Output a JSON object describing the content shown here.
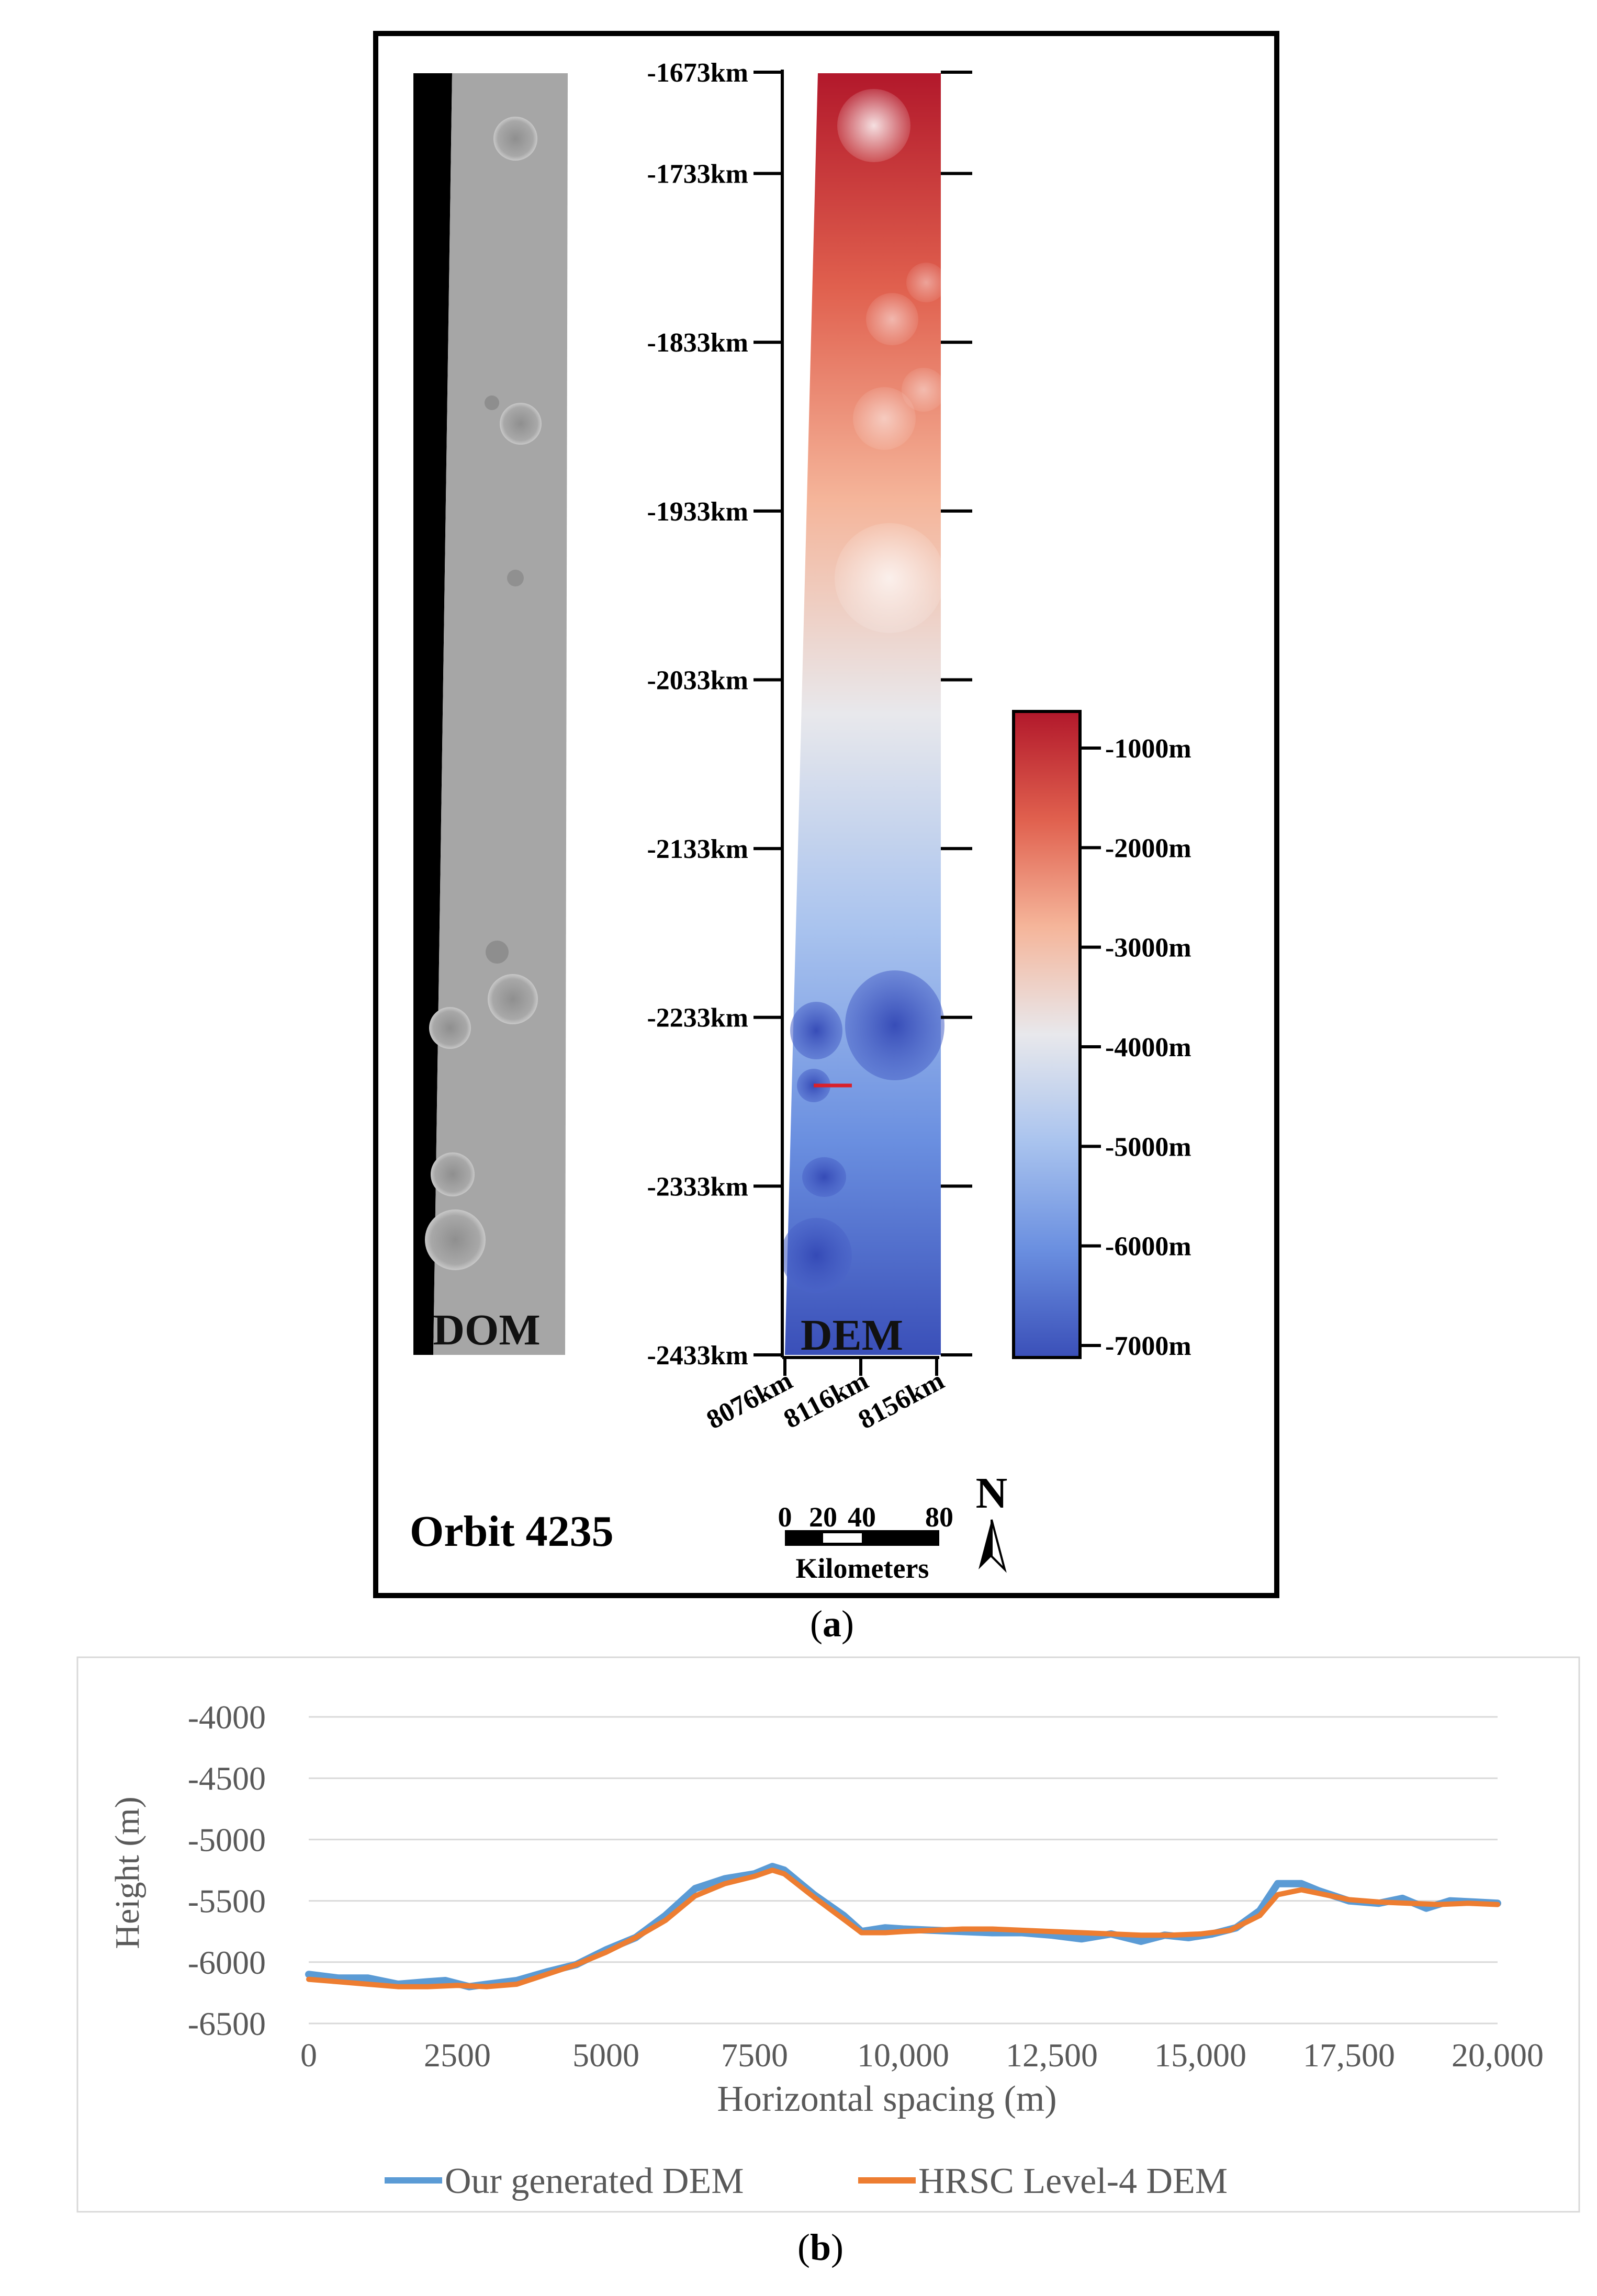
{
  "panel_a": {
    "caption": "a",
    "dom_label": "DOM",
    "dem_label": "DEM",
    "orbit_label": "Orbit 4235",
    "y_ticks": [
      "-1673km",
      "-1733km",
      "-1833km",
      "-1933km",
      "-2033km",
      "-2133km",
      "-2233km",
      "-2333km",
      "-2433km"
    ],
    "x_ticks": [
      "8076km",
      "8116km",
      "8156km"
    ],
    "colorbar": {
      "ticks": [
        "-1000m",
        "-2000m",
        "-3000m",
        "-4000m",
        "-5000m",
        "-6000m",
        "-7000m"
      ],
      "colors": [
        "#b2182b",
        "#e0604e",
        "#f5b59a",
        "#e8e8ec",
        "#a9c3ee",
        "#6a8fe0",
        "#3a4fb8"
      ]
    },
    "scale_bar": {
      "ticks": [
        "0",
        "20",
        "40",
        "80"
      ],
      "unit": "Kilometers"
    },
    "north": "N"
  },
  "panel_b": {
    "caption": "b",
    "chart_data": {
      "type": "line",
      "xlabel": "Horizontal spacing (m)",
      "ylabel": "Height (m)",
      "xlim": [
        0,
        20000
      ],
      "ylim": [
        -6500,
        -4000
      ],
      "x_ticks": [
        "0",
        "2500",
        "5000",
        "7500",
        "10,000",
        "12,500",
        "15,000",
        "17,500",
        "20,000"
      ],
      "y_ticks": [
        "-4000",
        "-4500",
        "-5000",
        "-5500",
        "-6000",
        "-6500"
      ],
      "grid": true,
      "legend_position": "bottom",
      "series": [
        {
          "name": "Our generated DEM",
          "color": "#5b9bd5",
          "x": [
            0,
            500,
            1000,
            1500,
            2000,
            2300,
            2700,
            3000,
            3500,
            4000,
            4500,
            5000,
            5500,
            6000,
            6500,
            7000,
            7500,
            7800,
            8000,
            8500,
            9000,
            9300,
            9700,
            10000,
            10500,
            11000,
            11500,
            12000,
            12500,
            13000,
            13500,
            14000,
            14400,
            14800,
            15200,
            15600,
            16000,
            16300,
            16700,
            17000,
            17500,
            18000,
            18400,
            18800,
            19200,
            19600,
            20000
          ],
          "y": [
            -6100,
            -6130,
            -6130,
            -6180,
            -6160,
            -6150,
            -6200,
            -6180,
            -6150,
            -6080,
            -6020,
            -5900,
            -5800,
            -5620,
            -5400,
            -5320,
            -5280,
            -5220,
            -5250,
            -5450,
            -5620,
            -5750,
            -5720,
            -5730,
            -5740,
            -5750,
            -5760,
            -5760,
            -5780,
            -5810,
            -5770,
            -5830,
            -5780,
            -5800,
            -5770,
            -5720,
            -5580,
            -5360,
            -5360,
            -5420,
            -5500,
            -5520,
            -5480,
            -5560,
            -5500,
            -5510,
            -5520
          ]
        },
        {
          "name": "HRSC Level-4 DEM",
          "color": "#ed7d31",
          "x": [
            0,
            500,
            1000,
            1500,
            2000,
            2500,
            3000,
            3500,
            4000,
            4500,
            5000,
            5500,
            6000,
            6500,
            7000,
            7500,
            7800,
            8000,
            8500,
            9000,
            9300,
            9700,
            10000,
            10500,
            11000,
            11500,
            12000,
            12500,
            13000,
            13500,
            14000,
            14500,
            15000,
            15500,
            16000,
            16300,
            16700,
            17000,
            17500,
            18000,
            18500,
            19000,
            19500,
            20000
          ],
          "y": [
            -6140,
            -6160,
            -6180,
            -6200,
            -6200,
            -6190,
            -6200,
            -6180,
            -6100,
            -6020,
            -5920,
            -5800,
            -5660,
            -5460,
            -5360,
            -5300,
            -5250,
            -5280,
            -5470,
            -5650,
            -5760,
            -5760,
            -5750,
            -5740,
            -5730,
            -5730,
            -5740,
            -5750,
            -5760,
            -5770,
            -5780,
            -5780,
            -5770,
            -5740,
            -5620,
            -5450,
            -5410,
            -5440,
            -5490,
            -5510,
            -5520,
            -5530,
            -5520,
            -5530
          ]
        }
      ]
    }
  }
}
